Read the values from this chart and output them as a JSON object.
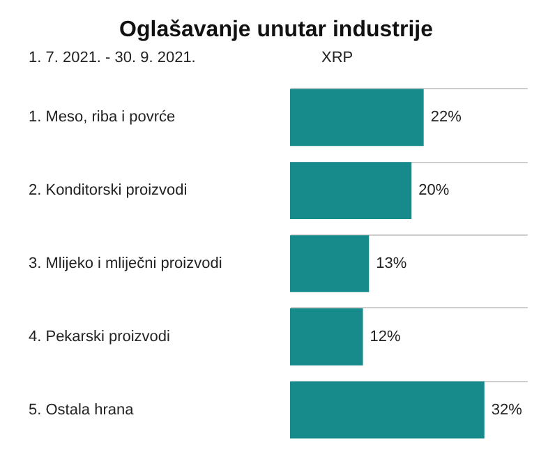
{
  "chart_data": {
    "type": "bar",
    "orientation": "horizontal",
    "title": "Oglašavanje unutar industrije",
    "ylabel": "1. 7. 2021. - 30. 9. 2021.",
    "xlabel": "XRP",
    "categories": [
      "1. Meso, riba i povrće",
      "2. Konditorski proizvodi",
      "3. Mlijeko i mliječni proizvodi",
      "4. Pekarski proizvodi",
      "5. Ostala hrana"
    ],
    "values": [
      22,
      20,
      13,
      12,
      32
    ],
    "value_labels": [
      "22%",
      "20%",
      "13%",
      "12%",
      "32%"
    ],
    "color": "#178a8c",
    "grid": "y"
  }
}
